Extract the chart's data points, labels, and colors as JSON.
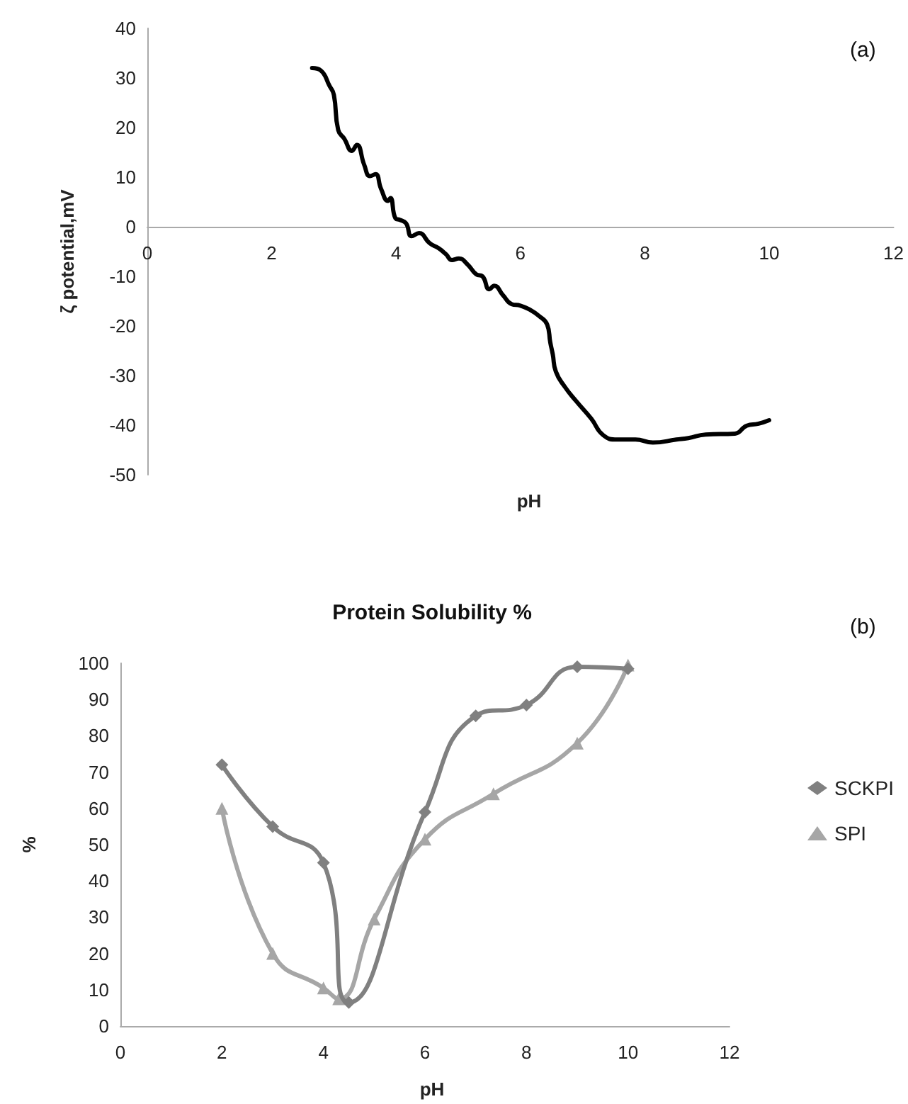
{
  "chart_data": [
    {
      "type": "line",
      "xlabel": "pH",
      "ylabel": "ζ potential,mV",
      "annotations": [
        "(a)"
      ],
      "xlim": [
        0,
        12
      ],
      "xticks": [
        0,
        2,
        4,
        6,
        8,
        10,
        12
      ],
      "ylim": [
        -50,
        40
      ],
      "yticks": [
        -50,
        -40,
        -30,
        -20,
        -10,
        0,
        10,
        20,
        30,
        40
      ],
      "grid": false,
      "legend": false,
      "marker": "none",
      "line_style": "solid",
      "series": [
        {
          "color": "#000000",
          "x": [
            2.65,
            2.79,
            2.93,
            3.0,
            3.07,
            3.17,
            3.29,
            3.37,
            3.49,
            3.58,
            3.67,
            3.76,
            3.87,
            3.91,
            3.99,
            4.06,
            4.16,
            4.25,
            4.37,
            4.54,
            4.68,
            4.8,
            4.9,
            5.01,
            5.15,
            5.29,
            5.39,
            5.5,
            5.58,
            5.72,
            5.86,
            6.0,
            6.15,
            6.29,
            6.43,
            6.48,
            6.52,
            6.57,
            6.71,
            6.9,
            7.14,
            7.33,
            7.56,
            7.85,
            8.13,
            8.51,
            8.7,
            8.98,
            9.45,
            9.64,
            9.83,
            10.0
          ],
          "values": [
            32,
            31.5,
            28.4,
            26.6,
            19.5,
            17.7,
            15.3,
            16.5,
            12.4,
            10.2,
            10.6,
            7.6,
            5.2,
            5.8,
            1.7,
            1.4,
            0.7,
            -1.9,
            -1.3,
            -3.3,
            -4.3,
            -5.5,
            -6.7,
            -6.4,
            -7.6,
            -9.6,
            -10,
            -12.6,
            -11.9,
            -13.8,
            -15.6,
            -15.9,
            -16.7,
            -17.9,
            -19.7,
            -23.3,
            -25.7,
            -29.2,
            -32.2,
            -35.2,
            -38.7,
            -42,
            -42.9,
            -42.9,
            -43.5,
            -42.9,
            -42.6,
            -41.9,
            -41.7,
            -40.1,
            -39.7,
            -39
          ]
        }
      ]
    },
    {
      "type": "line",
      "title": "Protein Solubility %",
      "xlabel": "pH",
      "ylabel": "%",
      "annotations": [
        "(b)"
      ],
      "xlim": [
        0,
        12
      ],
      "xticks": [
        0,
        2,
        4,
        6,
        8,
        10,
        12
      ],
      "ylim": [
        0,
        100
      ],
      "yticks": [
        0,
        10,
        20,
        30,
        40,
        50,
        60,
        70,
        80,
        90,
        100
      ],
      "grid": false,
      "legend": "right",
      "line_style": "solid",
      "series": [
        {
          "name": "SCKPI",
          "color": "#808080",
          "marker": "diamond",
          "x": [
            2,
            3,
            4,
            4.5,
            6,
            7,
            8,
            9,
            10
          ],
          "values": [
            72,
            55,
            45,
            6.5,
            59,
            85.5,
            88.5,
            99,
            98.5
          ]
        },
        {
          "name": "SPI",
          "color": "#a6a6a6",
          "marker": "triangle",
          "x": [
            2,
            3,
            4,
            4.3,
            5,
            6,
            7.35,
            9,
            10
          ],
          "values": [
            60,
            20,
            10.5,
            7.5,
            29.5,
            51.5,
            64,
            78,
            99.5
          ]
        }
      ]
    }
  ]
}
